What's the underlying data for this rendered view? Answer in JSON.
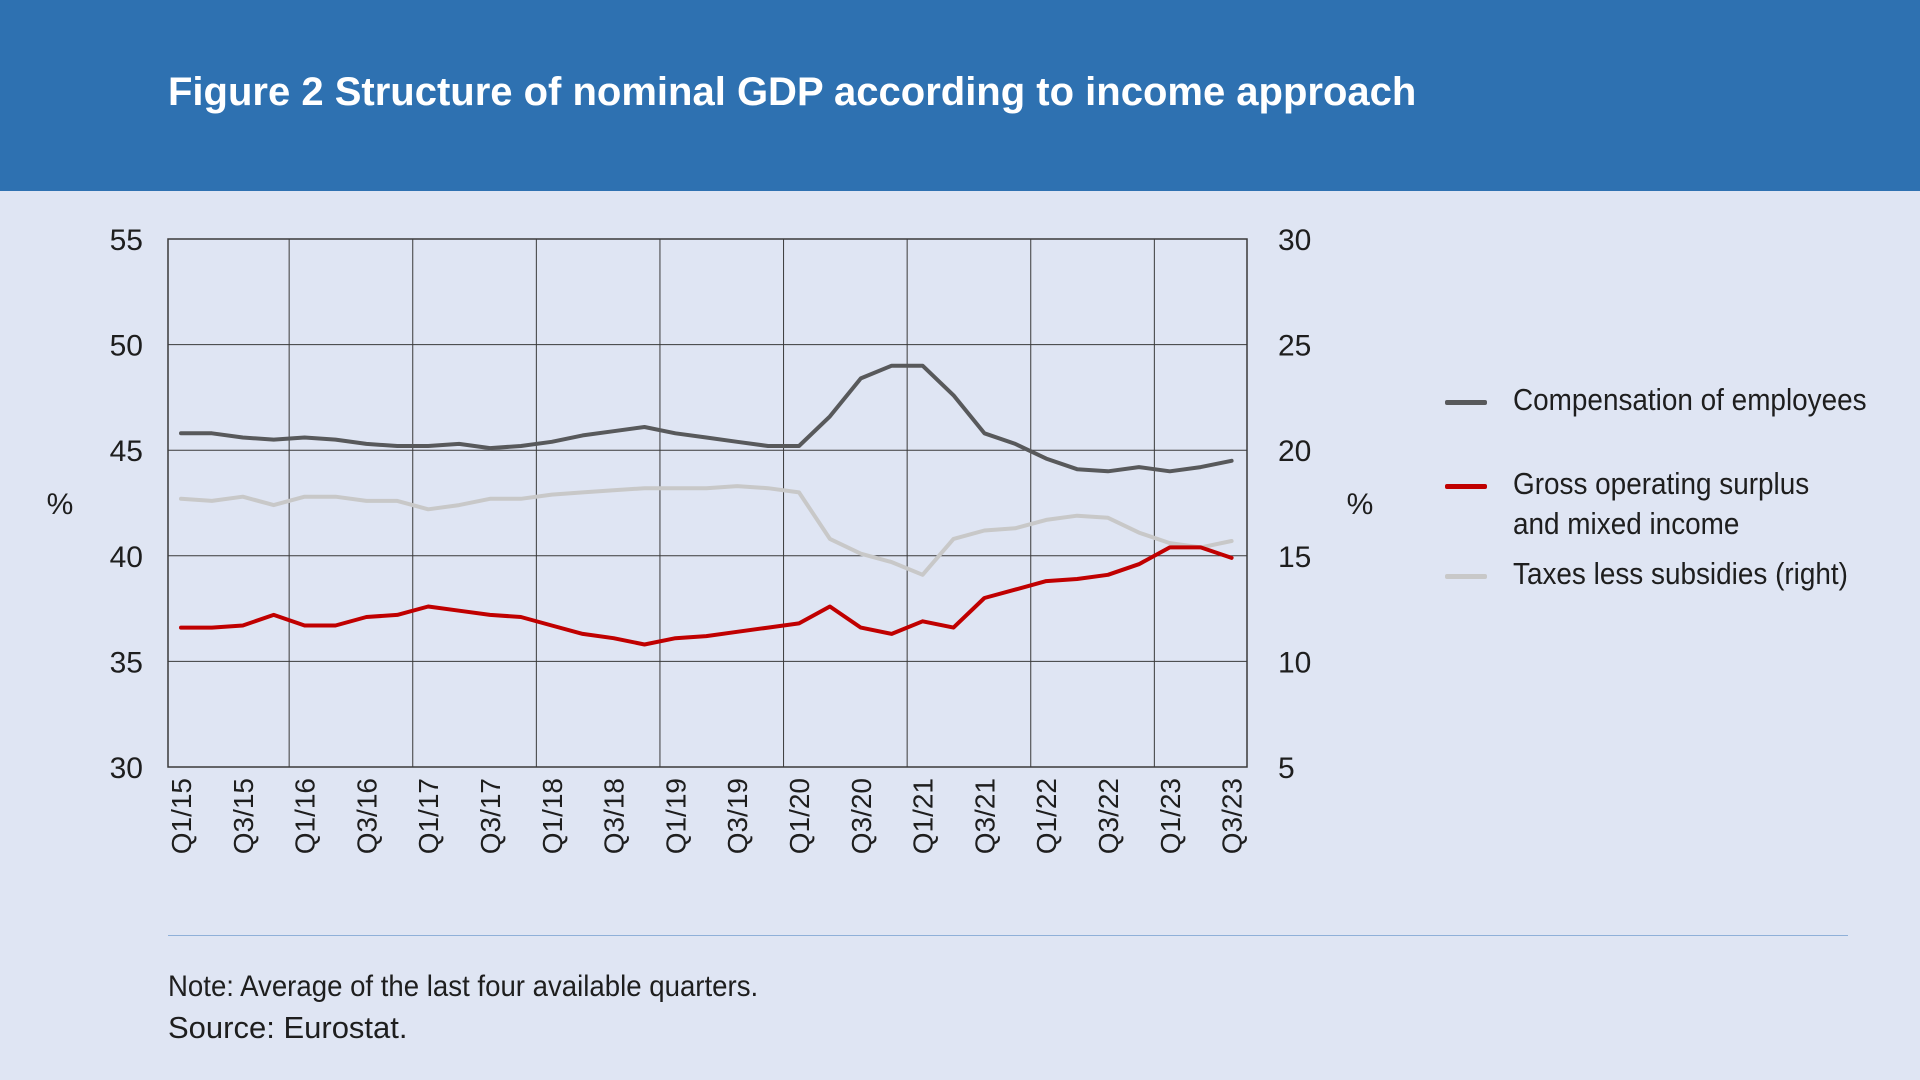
{
  "header": {
    "title": "Figure 2 Structure of nominal GDP according to income approach",
    "bg_color": "#2e71b1"
  },
  "chart_data": {
    "type": "line",
    "title": "Figure 2 Structure of nominal GDP according to income approach",
    "ylabel": "%",
    "y2label": "%",
    "ylim": [
      30,
      55
    ],
    "y2lim": [
      5,
      30
    ],
    "yticks": [
      30,
      35,
      40,
      45,
      50,
      55
    ],
    "y2ticks": [
      5,
      10,
      15,
      20,
      25,
      30
    ],
    "grid": true,
    "legend_position": "right",
    "x": [
      "Q1/15",
      "Q2/15",
      "Q3/15",
      "Q4/15",
      "Q1/16",
      "Q2/16",
      "Q3/16",
      "Q4/16",
      "Q1/17",
      "Q2/17",
      "Q3/17",
      "Q4/17",
      "Q1/18",
      "Q2/18",
      "Q3/18",
      "Q4/18",
      "Q1/19",
      "Q2/19",
      "Q3/19",
      "Q4/19",
      "Q1/20",
      "Q2/20",
      "Q3/20",
      "Q4/20",
      "Q1/21",
      "Q2/21",
      "Q3/21",
      "Q4/21",
      "Q1/22",
      "Q2/22",
      "Q3/22",
      "Q4/22",
      "Q1/23",
      "Q2/23",
      "Q3/23"
    ],
    "xtick_labels": [
      "Q1/15",
      "Q3/15",
      "Q1/16",
      "Q3/16",
      "Q1/17",
      "Q3/17",
      "Q1/18",
      "Q3/18",
      "Q1/19",
      "Q3/19",
      "Q1/20",
      "Q3/20",
      "Q1/21",
      "Q3/21",
      "Q1/22",
      "Q3/22",
      "Q1/23",
      "Q3/23"
    ],
    "series": [
      {
        "name": "Compensation of employees",
        "axis": "left",
        "color": "#58595b",
        "values": [
          45.8,
          45.8,
          45.6,
          45.5,
          45.6,
          45.5,
          45.3,
          45.2,
          45.2,
          45.3,
          45.1,
          45.2,
          45.4,
          45.7,
          45.9,
          46.1,
          45.8,
          45.6,
          45.4,
          45.2,
          45.2,
          46.6,
          48.4,
          49.0,
          49.0,
          47.6,
          45.8,
          45.3,
          44.6,
          44.1,
          44.0,
          44.2,
          44.0,
          44.2,
          44.5
        ]
      },
      {
        "name": "Gross operating surplus and mixed income",
        "axis": "left",
        "color": "#c00000",
        "values": [
          36.6,
          36.6,
          36.7,
          37.2,
          36.7,
          36.7,
          37.1,
          37.2,
          37.6,
          37.4,
          37.2,
          37.1,
          36.7,
          36.3,
          36.1,
          35.8,
          36.1,
          36.2,
          36.4,
          36.6,
          36.8,
          37.6,
          36.6,
          36.3,
          36.9,
          36.6,
          38.0,
          38.4,
          38.8,
          38.9,
          39.1,
          39.6,
          40.4,
          40.4,
          39.9
        ]
      },
      {
        "name": "Taxes less subsidies (right)",
        "axis": "right",
        "color": "#c8c8c8",
        "values": [
          17.7,
          17.6,
          17.8,
          17.4,
          17.8,
          17.8,
          17.6,
          17.6,
          17.2,
          17.4,
          17.7,
          17.7,
          17.9,
          18.0,
          18.1,
          18.2,
          18.2,
          18.2,
          18.3,
          18.2,
          18.0,
          15.8,
          15.1,
          14.7,
          14.1,
          15.8,
          16.2,
          16.3,
          16.7,
          16.9,
          16.8,
          16.1,
          15.6,
          15.4,
          15.7
        ]
      }
    ]
  },
  "legend": {
    "items": [
      {
        "lines": [
          "Compensation of employees"
        ],
        "color": "#58595b"
      },
      {
        "lines": [
          "Gross operating surplus",
          "and mixed income"
        ],
        "color": "#c00000"
      },
      {
        "lines": [
          "Taxes less subsidies (right)"
        ],
        "color": "#c8c8c8"
      }
    ]
  },
  "footer": {
    "note": "Note: Average of the last four available quarters.",
    "source": "Source: Eurostat."
  }
}
